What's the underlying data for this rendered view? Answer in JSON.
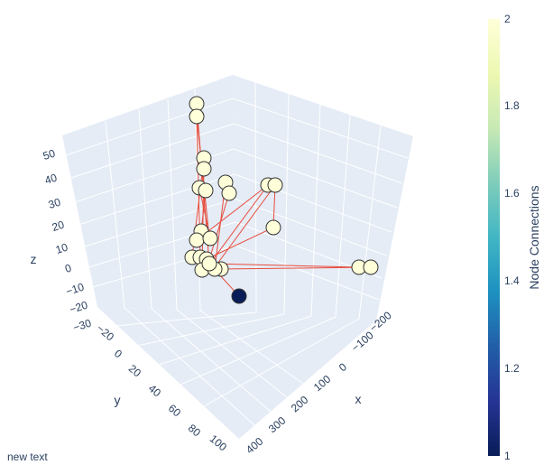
{
  "annotation": "new text",
  "colors": {
    "scene_bg": "#e5ecf6",
    "grid": "#ffffff",
    "edge": "#e74c3c",
    "node_high": "#ffffd9",
    "node_low": "#081d58",
    "node_outline": "#333333"
  },
  "chart_data": {
    "type": "scatter3d",
    "title": "",
    "axes": {
      "x": {
        "title": "x",
        "ticks": [
          "−200",
          "−100",
          "0",
          "100",
          "200",
          "300",
          "400"
        ]
      },
      "y": {
        "title": "y",
        "ticks": [
          "−20",
          "0",
          "20",
          "40",
          "60",
          "80",
          "100"
        ]
      },
      "z": {
        "title": "z",
        "ticks": [
          "−30",
          "−20",
          "−10",
          "0",
          "10",
          "20",
          "30",
          "40",
          "50"
        ]
      }
    },
    "colorbar": {
      "title": "Node Connections",
      "colorscale": "YlGnBu",
      "range": [
        1,
        2
      ],
      "ticks": [
        "1",
        "1.2",
        "1.4",
        "1.6",
        "1.8",
        "2"
      ]
    },
    "nodes": [
      {
        "x": -5,
        "y": 5,
        "z": 50,
        "connections": 2
      },
      {
        "x": -5,
        "y": 5,
        "z": 46,
        "connections": 2
      },
      {
        "x": 10,
        "y": 20,
        "z": 28,
        "connections": 2
      },
      {
        "x": 10,
        "y": 20,
        "z": 24,
        "connections": 2
      },
      {
        "x": 10,
        "y": 20,
        "z": 16,
        "connections": 2
      },
      {
        "x": 10,
        "y": 30,
        "z": 15,
        "connections": 2
      },
      {
        "x": 60,
        "y": 30,
        "z": 20,
        "connections": 2
      },
      {
        "x": 60,
        "y": 40,
        "z": 16,
        "connections": 2
      },
      {
        "x": 150,
        "y": 50,
        "z": 25,
        "connections": 2
      },
      {
        "x": 165,
        "y": 55,
        "z": 25,
        "connections": 2
      },
      {
        "x": 170,
        "y": 60,
        "z": 8,
        "connections": 2
      },
      {
        "x": 20,
        "y": 30,
        "z": 0,
        "connections": 2
      },
      {
        "x": 20,
        "y": 40,
        "z": -5,
        "connections": 2
      },
      {
        "x": 30,
        "y": 40,
        "z": -8,
        "connections": 2
      },
      {
        "x": 0,
        "y": 35,
        "z": -10,
        "connections": 2
      },
      {
        "x": 10,
        "y": 45,
        "z": -15,
        "connections": 2
      },
      {
        "x": 20,
        "y": 50,
        "z": -18,
        "connections": 2
      },
      {
        "x": 30,
        "y": 55,
        "z": -20,
        "connections": 2
      },
      {
        "x": 50,
        "y": 55,
        "z": -18,
        "connections": 2
      },
      {
        "x": 40,
        "y": 60,
        "z": -22,
        "connections": 2
      },
      {
        "x": -150,
        "y": 90,
        "z": 5,
        "connections": 2
      },
      {
        "x": -175,
        "y": 95,
        "z": 5,
        "connections": 2
      },
      {
        "x": 120,
        "y": 75,
        "z": -30,
        "connections": 1
      }
    ]
  }
}
